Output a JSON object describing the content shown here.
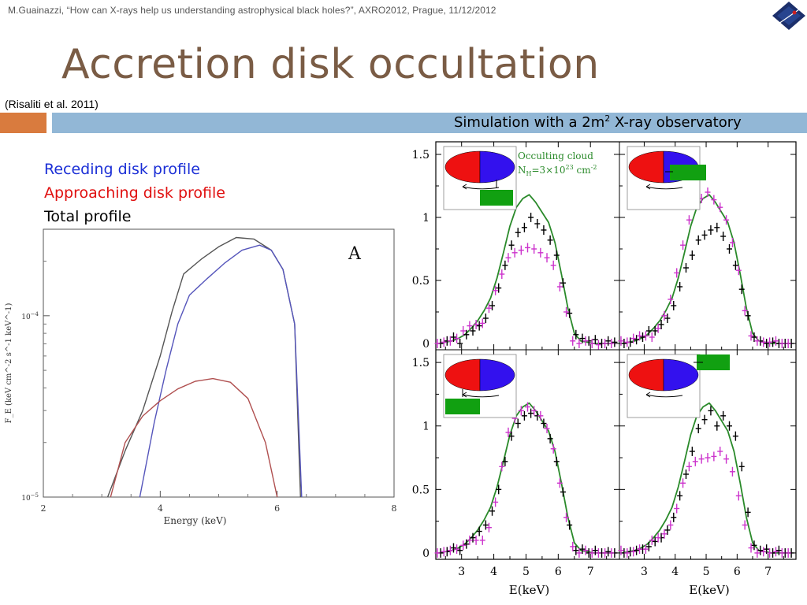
{
  "header": {
    "citation": "M.Guainazzi, “How can X-rays help us understanding astrophysical black holes?”, AXRO2012, Prague, 11/12/2012"
  },
  "title": "Accretion disk occultation",
  "reference": "(Risaliti et al. 2011)",
  "simulation_label": "Simulation with a 2m",
  "simulation_sup": "2",
  "simulation_label_end": " X-ray observatory",
  "legend": {
    "receding": "Receding disk profile",
    "approaching": "Approaching disk profile",
    "total": "Total profile"
  },
  "colors": {
    "title": "#7a5c45",
    "receding": "#1b2fd6",
    "approaching": "#e01010",
    "total": "#000000",
    "left_receding_curve": "#5555bb",
    "left_approaching_curve": "#b05050",
    "left_total_curve": "#555555",
    "model": "#2a8a2a",
    "occulted_points": "#cc33cc",
    "cloud": "#11a011",
    "disk_red": "#ee1111",
    "disk_blue": "#3311ee",
    "bar_orange": "#d97b3e",
    "bar_blue": "#92b7d6"
  },
  "chart_data": [
    {
      "type": "line",
      "panel_label": "A",
      "xlabel": "Energy (keV)",
      "ylabel": "F_E (keV cm^-2 s^-1 keV^-1)",
      "xlim": [
        2,
        8
      ],
      "ylim": [
        1e-05,
        0.0003
      ],
      "yscale": "log",
      "x_ticks": [
        "2",
        "4",
        "6",
        "8"
      ],
      "y_ticks": [
        "10^-5",
        "10^-4"
      ],
      "series": [
        {
          "name": "Total profile",
          "x": [
            3.1,
            3.4,
            3.7,
            4.0,
            4.2,
            4.4,
            4.7,
            5.0,
            5.3,
            5.6,
            5.9,
            6.1,
            6.3,
            6.4
          ],
          "y": [
            1e-05,
            1.8e-05,
            3e-05,
            6e-05,
            0.000105,
            0.00017,
            0.000205,
            0.00024,
            0.00027,
            0.000265,
            0.00023,
            0.00018,
            9e-05,
            1e-05
          ]
        },
        {
          "name": "Receding disk profile",
          "x": [
            3.65,
            3.9,
            4.1,
            4.3,
            4.5,
            4.8,
            5.1,
            5.4,
            5.7,
            5.9,
            6.1,
            6.3,
            6.42
          ],
          "y": [
            1e-05,
            2.6e-05,
            5e-05,
            9e-05,
            0.00013,
            0.00016,
            0.000195,
            0.00023,
            0.000245,
            0.00023,
            0.00018,
            9e-05,
            1e-05
          ]
        },
        {
          "name": "Approaching disk profile",
          "x": [
            3.15,
            3.4,
            3.7,
            4.0,
            4.3,
            4.6,
            4.9,
            5.2,
            5.5,
            5.8,
            6.0
          ],
          "y": [
            1e-05,
            2e-05,
            2.8e-05,
            3.4e-05,
            3.95e-05,
            4.35e-05,
            4.5e-05,
            4.3e-05,
            3.5e-05,
            2e-05,
            1e-05
          ]
        }
      ]
    },
    {
      "type": "scatter",
      "layout": "2x2 panels",
      "xlabel": "E(keV)",
      "xlim": [
        2.2,
        7.9
      ],
      "ylim": [
        -0.05,
        1.6
      ],
      "x_ticks": [
        "3",
        "4",
        "5",
        "6",
        "7"
      ],
      "y_ticks": [
        "0",
        "0.5",
        "1",
        "1.5"
      ],
      "annotation_title": "Occulting cloud",
      "annotation_nh": "NH=3×10^23 cm^-2",
      "annotation": {
        "prefix": "N",
        "sub": "H",
        "mid": "=3×10",
        "sup": "23",
        "unit": " cm",
        "unit_sup": "-2"
      },
      "energies": [
        2.3,
        2.5,
        2.7,
        2.9,
        3.1,
        3.3,
        3.5,
        3.7,
        3.9,
        4.1,
        4.3,
        4.5,
        4.7,
        4.9,
        5.1,
        5.3,
        5.5,
        5.7,
        5.9,
        6.1,
        6.3,
        6.5,
        6.7,
        6.9,
        7.1,
        7.3,
        7.5,
        7.7
      ],
      "model": [
        0.0,
        0.01,
        0.02,
        0.04,
        0.07,
        0.12,
        0.18,
        0.26,
        0.36,
        0.52,
        0.72,
        0.93,
        1.08,
        1.15,
        1.18,
        1.12,
        1.04,
        0.96,
        0.8,
        0.55,
        0.28,
        0.08,
        0.02,
        0.01,
        0.0,
        0.0,
        0.0,
        0.0
      ],
      "panels": [
        {
          "position": "top-left",
          "total": [
            0.0,
            0.02,
            0.05,
            0.0,
            0.07,
            0.1,
            0.14,
            0.2,
            0.3,
            0.44,
            0.62,
            0.78,
            0.88,
            0.92,
            1.0,
            0.95,
            0.9,
            0.82,
            0.7,
            0.48,
            0.24,
            0.07,
            0.04,
            0.02,
            0.03,
            0.0,
            0.02,
            0.01
          ],
          "occulted": [
            0.0,
            0.01,
            0.02,
            0.04,
            0.1,
            0.14,
            0.15,
            0.16,
            0.28,
            0.42,
            0.55,
            0.68,
            0.72,
            0.74,
            0.76,
            0.75,
            0.72,
            0.68,
            0.62,
            0.45,
            0.25,
            0.02,
            0.0,
            0.02,
            0.0,
            -0.01,
            0.0,
            0.0
          ]
        },
        {
          "position": "top-right",
          "total": [
            0.0,
            0.01,
            0.03,
            0.05,
            0.1,
            0.1,
            0.15,
            0.2,
            0.3,
            0.45,
            0.6,
            0.7,
            0.82,
            0.86,
            0.9,
            0.92,
            0.85,
            0.75,
            0.62,
            0.43,
            0.22,
            0.05,
            0.02,
            0.0,
            0.01,
            0.0,
            0.0,
            0.0
          ],
          "occulted": [
            0.02,
            0.01,
            0.04,
            0.06,
            0.06,
            0.05,
            0.12,
            0.22,
            0.35,
            0.56,
            0.78,
            0.98,
            1.1,
            1.15,
            1.2,
            1.14,
            1.08,
            0.98,
            0.8,
            0.58,
            0.26,
            0.06,
            0.02,
            0.01,
            0.01,
            0.02,
            0.0,
            0.0
          ]
        },
        {
          "position": "bottom-left",
          "total": [
            0.0,
            0.01,
            0.04,
            0.02,
            0.07,
            0.12,
            0.17,
            0.22,
            0.33,
            0.5,
            0.72,
            0.92,
            1.02,
            1.08,
            1.1,
            1.08,
            1.02,
            0.9,
            0.72,
            0.48,
            0.22,
            0.02,
            0.03,
            0.0,
            0.02,
            0.0,
            0.01,
            0.0
          ],
          "occulted": [
            0.0,
            0.01,
            0.02,
            0.03,
            0.06,
            0.1,
            0.1,
            0.1,
            0.2,
            0.4,
            0.68,
            0.95,
            1.06,
            1.12,
            1.15,
            1.12,
            1.08,
            0.98,
            0.82,
            0.55,
            0.28,
            0.05,
            0.0,
            0.02,
            0.0,
            0.0,
            0.0,
            0.0
          ]
        },
        {
          "position": "bottom-right",
          "total": [
            0.0,
            0.01,
            0.02,
            0.03,
            0.05,
            0.09,
            0.12,
            0.18,
            0.28,
            0.45,
            0.62,
            0.8,
            0.98,
            1.05,
            1.12,
            1.0,
            1.08,
            1.0,
            0.92,
            0.68,
            0.32,
            0.06,
            0.02,
            0.03,
            0.0,
            0.02,
            0.0,
            0.0
          ],
          "occulted": [
            0.02,
            0.0,
            0.01,
            0.03,
            0.03,
            0.1,
            0.12,
            0.15,
            0.22,
            0.35,
            0.55,
            0.68,
            0.72,
            0.74,
            0.75,
            0.76,
            0.8,
            0.74,
            0.64,
            0.45,
            0.22,
            0.04,
            0.0,
            0.01,
            0.0,
            0.01,
            0.0,
            0.0
          ]
        }
      ],
      "cloud_positions": [
        "below disk, moving up",
        "right of disk, moving left",
        "lower-left of disk, moving up",
        "upper-right of disk, moving left"
      ]
    }
  ]
}
